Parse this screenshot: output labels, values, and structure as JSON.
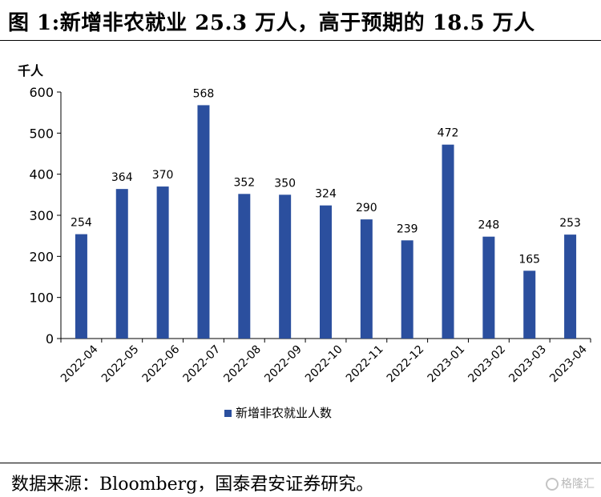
{
  "title": "图 1:新增非农就业 25.3 万人，高于预期的 18.5 万人",
  "source": "数据来源：Bloomberg，国泰君安证券研究。",
  "watermark": {
    "text": "格隆汇",
    "icon": "gelonghui-logo-icon"
  },
  "colors": {
    "bar": "#2b4f9e",
    "axis": "#000000",
    "text": "#000000"
  },
  "chart_data": {
    "type": "bar",
    "unit_label": "千人",
    "categories": [
      "2022-04",
      "2022-05",
      "2022-06",
      "2022-07",
      "2022-08",
      "2022-09",
      "2022-10",
      "2022-11",
      "2022-12",
      "2023-01",
      "2023-02",
      "2023-03",
      "2023-04"
    ],
    "series": [
      {
        "name": "新增非农就业人数",
        "values": [
          254,
          364,
          370,
          568,
          352,
          350,
          324,
          290,
          239,
          472,
          248,
          165,
          253
        ]
      }
    ],
    "ylim": [
      0,
      600
    ],
    "yticks": [
      0,
      100,
      200,
      300,
      400,
      500,
      600
    ],
    "grid": false,
    "legend_position": "bottom",
    "data_labels": true
  }
}
